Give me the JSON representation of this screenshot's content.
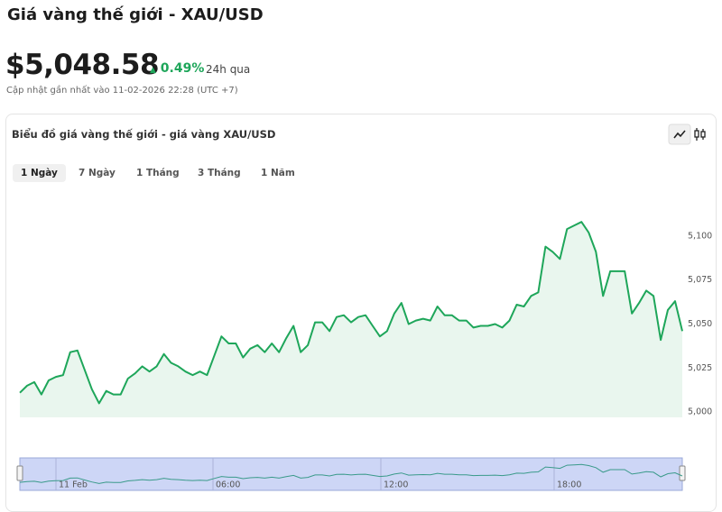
{
  "header": {
    "title": "Giá vàng thế giới - XAU/USD",
    "price": "$5,048.58",
    "change": "0.49%",
    "period": "24h qua",
    "updated": "Cập nhật gần nhất vào 11-02-2026 22:28 (UTC +7)"
  },
  "tabs": [
    "1 Ngày",
    "7 Ngày",
    "1 Tháng",
    "3 Tháng",
    "1 Năm"
  ],
  "navigator_labels": [
    "11 Feb",
    "06:00",
    "12:00",
    "18:00"
  ],
  "chart_data": {
    "type": "area",
    "title": "Biểu đồ giá vàng thế giới - giá vàng XAU/USD",
    "color": "#1ea65a",
    "values": [
      5011,
      5015,
      5017,
      5010,
      5018,
      5020,
      5021,
      5034,
      5035,
      5024,
      5013,
      5005,
      5012,
      5010,
      5010,
      5019,
      5022,
      5026,
      5023,
      5026,
      5033,
      5028,
      5026,
      5023,
      5021,
      5023,
      5021,
      5032,
      5043,
      5039,
      5039,
      5031,
      5036,
      5038,
      5034,
      5039,
      5034,
      5042,
      5049,
      5034,
      5038,
      5051,
      5051,
      5046,
      5054,
      5055,
      5051,
      5054,
      5055,
      5049,
      5043,
      5046,
      5056,
      5062,
      5050,
      5052,
      5053,
      5052,
      5060,
      5055,
      5055,
      5052,
      5052,
      5048,
      5049,
      5049,
      5050,
      5048,
      5052,
      5061,
      5060,
      5066,
      5068,
      5094,
      5091,
      5087,
      5104,
      5106,
      5108,
      5102,
      5091,
      5066,
      5080,
      5080,
      5080,
      5056,
      5062,
      5069,
      5066,
      5041,
      5058,
      5063,
      5046
    ],
    "ylim": [
      4997,
      5124
    ],
    "yticks": [
      {
        "value": 5000,
        "label": "5,000"
      },
      {
        "value": 5025,
        "label": "5,025"
      },
      {
        "value": 5050,
        "label": "5,050"
      },
      {
        "value": 5075,
        "label": "5,075"
      },
      {
        "value": 5100,
        "label": "5,100"
      }
    ]
  }
}
